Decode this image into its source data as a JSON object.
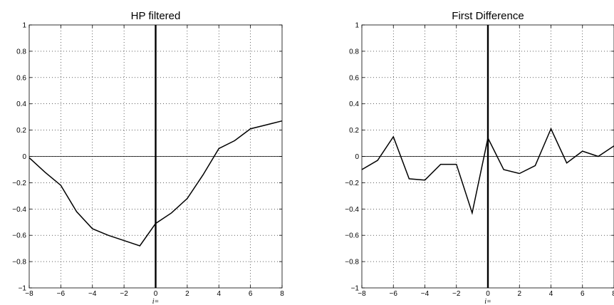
{
  "chart_data": [
    {
      "type": "line",
      "title": "HP filtered",
      "xlabel": "i=",
      "ylabel": "",
      "xlim": [
        -8,
        8
      ],
      "ylim": [
        -1,
        1
      ],
      "xticks": [
        -8,
        -6,
        -4,
        -2,
        0,
        2,
        4,
        6,
        8
      ],
      "yticks": [
        -1,
        -0.8,
        -0.6,
        -0.4,
        -0.2,
        0,
        0.2,
        0.4,
        0.6,
        0.8,
        1
      ],
      "grid": true,
      "zero_line": true,
      "vertical_line_at": 0,
      "series": [
        {
          "x": [
            -8,
            -7,
            -6,
            -5,
            -4,
            -3,
            -2,
            -1,
            0,
            1,
            2,
            3,
            4,
            5,
            6,
            7,
            8
          ],
          "values": [
            -0.01,
            -0.12,
            -0.22,
            -0.42,
            -0.55,
            -0.6,
            -0.64,
            -0.68,
            -0.51,
            -0.43,
            -0.32,
            -0.14,
            0.06,
            0.12,
            0.21,
            0.24,
            0.27
          ]
        }
      ]
    },
    {
      "type": "line",
      "title": "First Difference",
      "xlabel": "i=",
      "ylabel": "",
      "xlim": [
        -8,
        8
      ],
      "ylim": [
        -1,
        1
      ],
      "xticks": [
        -8,
        -6,
        -4,
        -2,
        0,
        2,
        4,
        6,
        8
      ],
      "yticks": [
        -1,
        -0.8,
        -0.6,
        -0.4,
        -0.2,
        0,
        0.2,
        0.4,
        0.6,
        0.8,
        1
      ],
      "grid": true,
      "zero_line": true,
      "vertical_line_at": 0,
      "series": [
        {
          "x": [
            -8,
            -7,
            -6,
            -5,
            -4,
            -3,
            -2,
            -1,
            0,
            1,
            2,
            3,
            4,
            5,
            6,
            7,
            8
          ],
          "values": [
            -0.1,
            -0.03,
            0.15,
            -0.17,
            -0.18,
            -0.06,
            -0.06,
            -0.43,
            0.14,
            -0.1,
            -0.13,
            -0.07,
            0.21,
            -0.05,
            0.04,
            0.0,
            0.08
          ]
        }
      ]
    }
  ]
}
